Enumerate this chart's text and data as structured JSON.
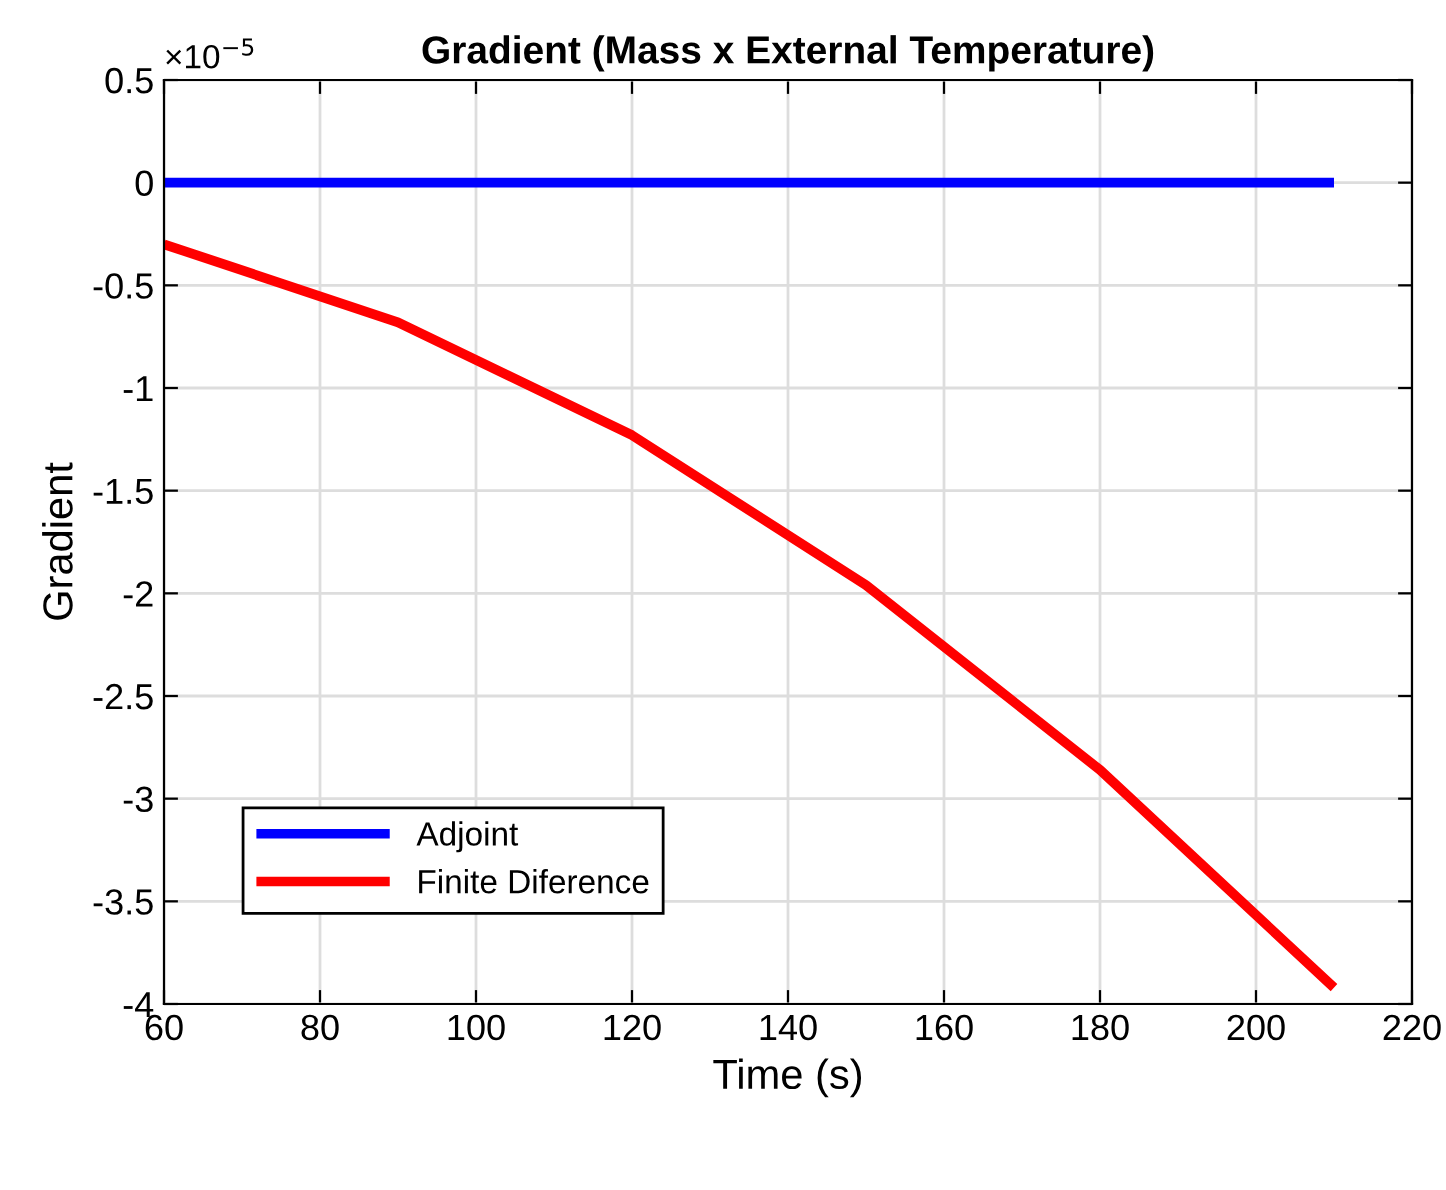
{
  "chart_data": {
    "type": "line",
    "title": "Gradient (Mass x External Temperature)",
    "xlabel": "Time (s)",
    "ylabel": "Gradient",
    "annotations": [
      "×10$^{−5}$"
    ],
    "x": [
      60,
      90,
      120,
      150,
      180,
      210
    ],
    "series": [
      {
        "name": "Adjoint",
        "color": "#0000ff",
        "values": [
          0,
          0,
          0,
          0,
          0,
          0
        ]
      },
      {
        "name": "Finite Diference",
        "color": "#ff0000",
        "values": [
          -0.3,
          -0.68,
          -1.23,
          -1.96,
          -2.86,
          -3.92
        ]
      }
    ],
    "xlim": [
      60,
      220
    ],
    "xticks": [
      60,
      80,
      100,
      120,
      140,
      160,
      180,
      200,
      220
    ],
    "ylim": [
      -4,
      0.5
    ],
    "yticks": [
      -4,
      -3.5,
      -3,
      -2.5,
      -2,
      -1.5,
      -1,
      -0.5,
      0,
      0.5
    ],
    "grid": true,
    "legend": "bottom left",
    "line_style": "solid",
    "marker": "none"
  }
}
